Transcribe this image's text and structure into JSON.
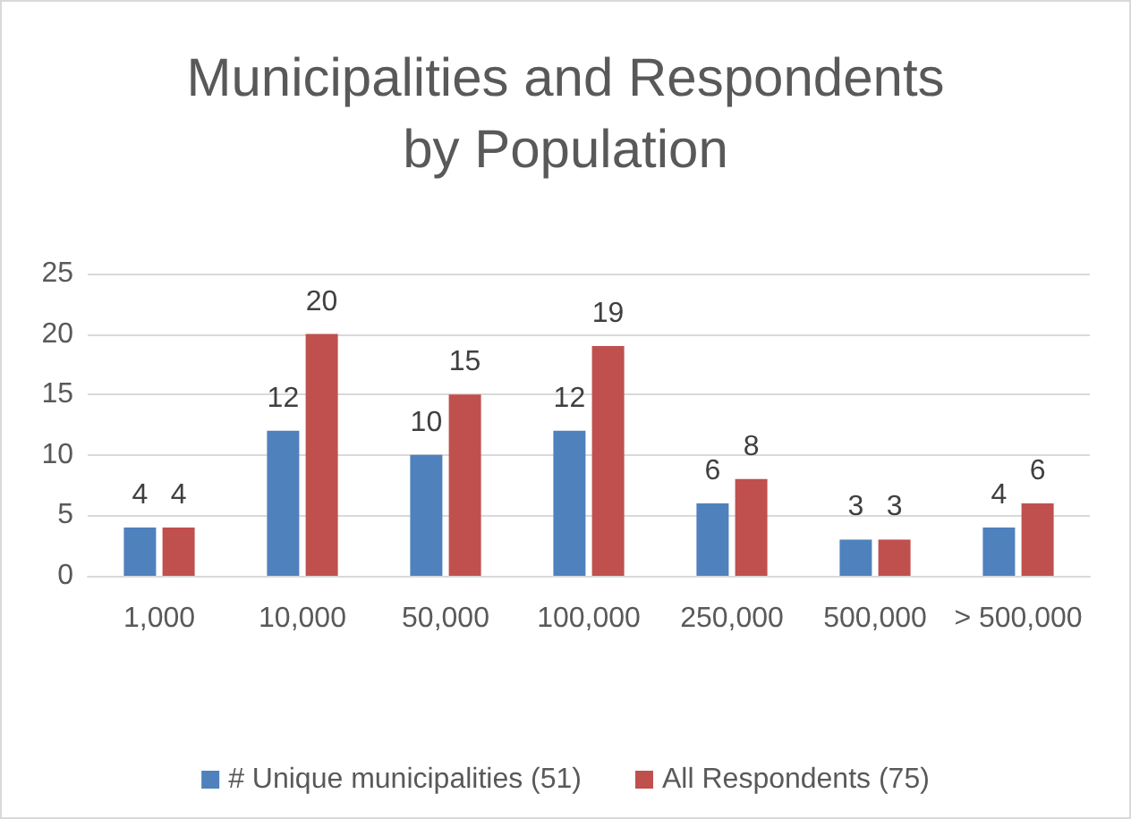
{
  "chart_data": {
    "type": "bar",
    "title": "Municipalities and Respondents\nby Population",
    "categories": [
      "1,000",
      "10,000",
      "50,000",
      "100,000",
      "250,000",
      "500,000",
      "> 500,000"
    ],
    "series": [
      {
        "name": "# Unique municipalities (51)",
        "color": "#4f81bd",
        "values": [
          4,
          12,
          10,
          12,
          6,
          3,
          4
        ]
      },
      {
        "name": "All Respondents (75)",
        "color": "#c0504d",
        "values": [
          4,
          20,
          15,
          19,
          8,
          3,
          6
        ]
      }
    ],
    "ylim": [
      0,
      25
    ],
    "yticks": [
      0,
      5,
      10,
      15,
      20,
      25
    ],
    "grid": "y",
    "legend": "bottom",
    "data_labels": true
  }
}
